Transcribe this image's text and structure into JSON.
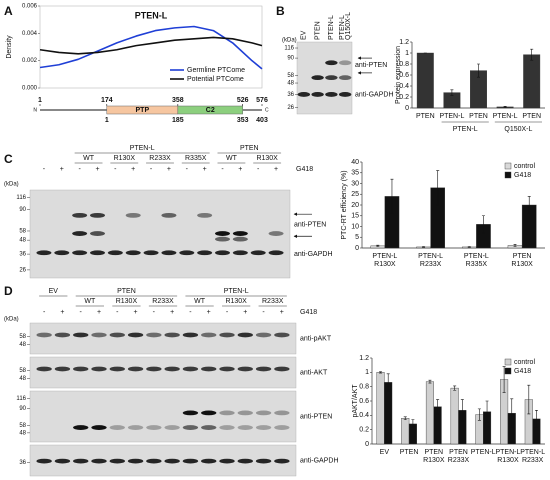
{
  "panel_labels": [
    "A",
    "B",
    "C",
    "D"
  ],
  "chart_data": [
    {
      "type": "line",
      "title": "PTEN-L",
      "y_label": "Density",
      "xlim": [
        1,
        576
      ],
      "ylim": [
        0,
        0.006
      ],
      "yticks": [
        {
          "value": 0,
          "label": "0.000"
        },
        {
          "value": 0.002,
          "label": "0.002"
        },
        {
          "value": 0.004,
          "label": "0.004"
        },
        {
          "value": 0.006,
          "label": "0.006"
        }
      ],
      "x": [
        1,
        50,
        100,
        150,
        200,
        250,
        300,
        350,
        400,
        450,
        500,
        550,
        576
      ],
      "series": [
        {
          "name": "Germline PTCome",
          "color": "#1f3fd6",
          "values": [
            0.0015,
            0.0017,
            0.0021,
            0.0027,
            0.0033,
            0.0038,
            0.0042,
            0.0044,
            0.0045,
            0.0042,
            0.0033,
            0.002,
            0.0014
          ]
        },
        {
          "name": "Potential PTCome",
          "color": "#111111",
          "values": [
            0.0028,
            0.0026,
            0.0025,
            0.0026,
            0.0028,
            0.0031,
            0.0033,
            0.0035,
            0.0036,
            0.0037,
            0.0036,
            0.0033,
            0.0031
          ]
        }
      ],
      "legend": "lower right",
      "domain_map": {
        "ticks": [
          1,
          174,
          358,
          526,
          576
        ],
        "native_ticks": [
          1,
          185,
          353,
          403
        ],
        "n_term": "N",
        "c_term": "C",
        "domains": [
          {
            "name": "PTP",
            "start": 174,
            "end": 358,
            "color": "#f6c6a0"
          },
          {
            "name": "C2",
            "start": 358,
            "end": 526,
            "color": "#8ccf7e"
          }
        ]
      }
    },
    {
      "type": "bar",
      "y_label": "Protein expression",
      "groups": [
        {
          "categories": [
            "PTEN"
          ]
        },
        {
          "name": "PTEN-L",
          "categories": [
            "PTEN-L",
            "PTEN"
          ]
        },
        {
          "name": "Q150X-L",
          "categories": [
            "PTEN-L",
            "PTEN"
          ]
        }
      ],
      "values": [
        1,
        0.28,
        0.68,
        0.02,
        0.97
      ],
      "errors": [
        0,
        0.05,
        0.12,
        0.01,
        0.1
      ],
      "color": "#333333",
      "ylim": [
        0,
        1.2
      ],
      "yticks": [
        0,
        0.2,
        0.4,
        0.6,
        0.8,
        1,
        1.2
      ]
    },
    {
      "type": "bar",
      "y_label": "PTC-RT efficiency (%)",
      "categories": [
        [
          "PTEN-L",
          "R130X"
        ],
        [
          "PTEN-L",
          "R233X"
        ],
        [
          "PTEN-L",
          "R335X"
        ],
        [
          "PTEN",
          "R130X"
        ]
      ],
      "series": [
        {
          "name": "control",
          "color": "#d9d9d9",
          "values": [
            1,
            0.5,
            0.5,
            1.2
          ],
          "errors": [
            0.3,
            0.2,
            0.2,
            0.5
          ]
        },
        {
          "name": "G418",
          "color": "#111111",
          "values": [
            24,
            28,
            11,
            20
          ],
          "errors": [
            8,
            8,
            4,
            4
          ]
        }
      ],
      "ylim": [
        0,
        40
      ],
      "yticks": [
        0,
        5,
        10,
        15,
        20,
        25,
        30,
        35,
        40
      ],
      "legend": "upper right"
    },
    {
      "type": "bar",
      "y_label": "pAKT/AKT",
      "categories": [
        [
          "EV"
        ],
        [
          "PTEN"
        ],
        [
          "PTEN",
          "R130X"
        ],
        [
          "PTEN",
          "R233X"
        ],
        [
          "PTEN-L"
        ],
        [
          "PTEN-L",
          "R130X"
        ],
        [
          "PTEN-L",
          "R233X"
        ]
      ],
      "series": [
        {
          "name": "control",
          "color": "#d0d0d0",
          "values": [
            1,
            0.36,
            0.87,
            0.78,
            0.41,
            0.9,
            0.62
          ],
          "errors": [
            0.01,
            0.02,
            0.02,
            0.03,
            0.08,
            0.18,
            0.2
          ]
        },
        {
          "name": "G418",
          "color": "#111111",
          "values": [
            0.86,
            0.28,
            0.52,
            0.47,
            0.45,
            0.43,
            0.35
          ],
          "errors": [
            0.12,
            0.06,
            0.1,
            0.15,
            0.15,
            0.2,
            0.12
          ]
        }
      ],
      "ylim": [
        0,
        1.2
      ],
      "yticks": [
        0,
        0.2,
        0.4,
        0.6,
        0.8,
        1,
        1.2
      ],
      "legend": "upper right"
    }
  ],
  "blot_b": {
    "kda": "(kDa)",
    "lanes": [
      [
        "EV"
      ],
      [
        "PTEN"
      ],
      [
        "PTEN-L"
      ],
      [
        "PTEN-L",
        "Q150X-L"
      ]
    ],
    "markers": [
      116,
      90,
      58,
      48,
      36,
      26
    ],
    "antibodies": [
      "anti-PTEN",
      "anti-GAPDH"
    ]
  },
  "blot_c": {
    "kda": "(kDa)",
    "treatment_label": "G418",
    "treatments": [
      "-",
      "+"
    ],
    "groups": [
      {
        "subgroups": [
          null
        ]
      },
      {
        "name": "PTEN-L",
        "subgroups": [
          "WT",
          "R130X",
          "R233X",
          "R335X"
        ]
      },
      {
        "name": "PTEN",
        "subgroups": [
          "WT",
          "R130X"
        ]
      }
    ],
    "markers": [
      116,
      90,
      58,
      48,
      36,
      26
    ],
    "antibodies": [
      "anti-PTEN",
      "anti-GAPDH"
    ]
  },
  "blot_d": {
    "kda": "(kDa)",
    "treatment_label": "G418",
    "treatments": [
      "-",
      "+"
    ],
    "groups": [
      {
        "name": "EV",
        "subgroups": [
          null
        ]
      },
      {
        "name": "PTEN",
        "subgroups": [
          "WT",
          "R130X",
          "R233X"
        ]
      },
      {
        "name": "PTEN-L",
        "subgroups": [
          "WT",
          "R130X",
          "R233X"
        ]
      }
    ],
    "strips": [
      {
        "antibody": "anti-pAKT",
        "markers": [
          58,
          48
        ]
      },
      {
        "antibody": "anti-AKT",
        "markers": [
          58,
          48
        ]
      },
      {
        "antibody": "anti-PTEN",
        "markers": [
          116,
          90,
          58,
          48
        ]
      },
      {
        "antibody": "anti-GAPDH",
        "markers": [
          36
        ]
      }
    ]
  }
}
